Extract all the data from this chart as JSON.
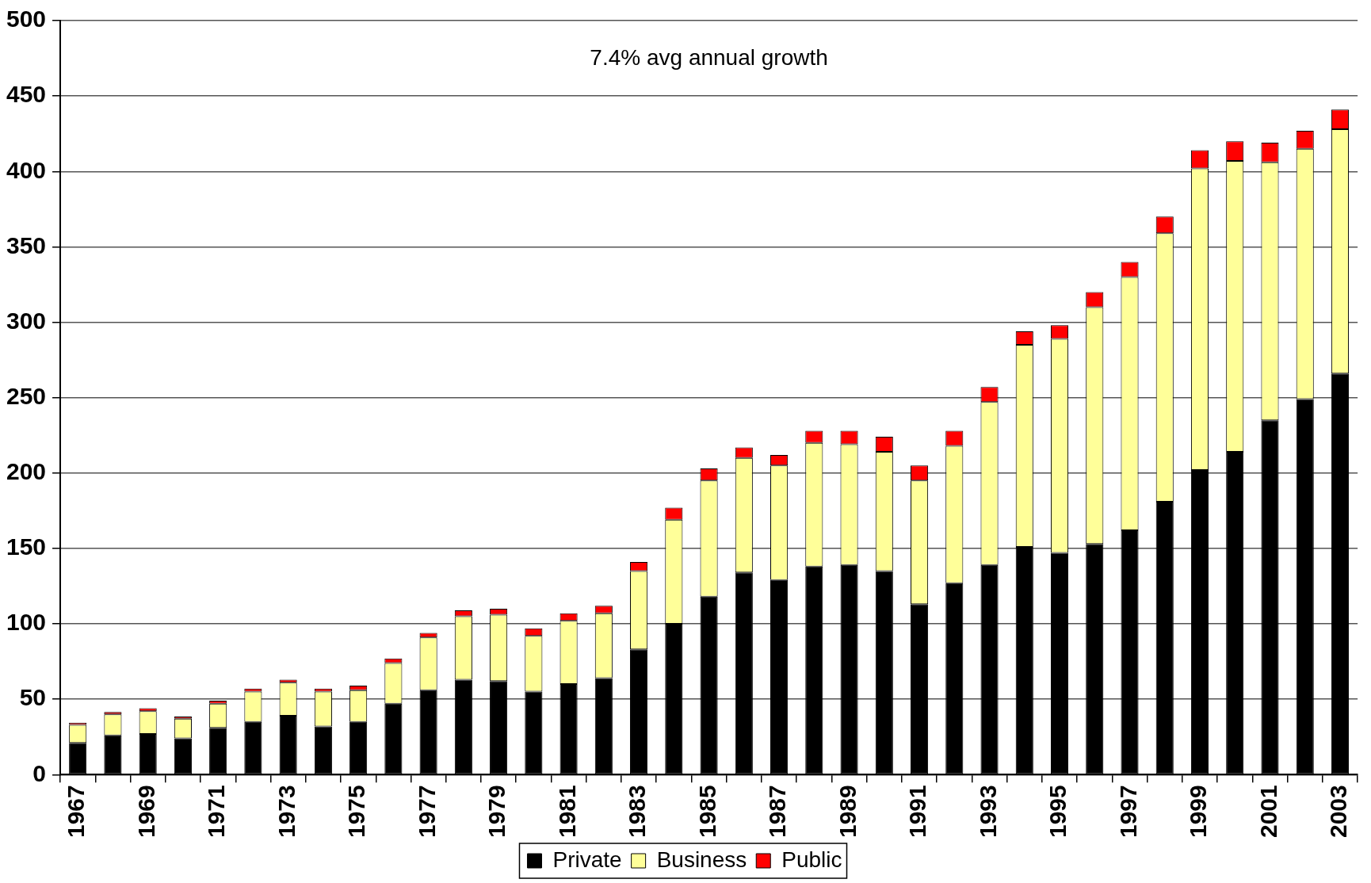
{
  "chart_data": {
    "type": "bar",
    "stacked": true,
    "annotations": [
      "7.4% avg annual growth"
    ],
    "categories": [
      "1967",
      null,
      "1969",
      null,
      "1971",
      null,
      "1973",
      null,
      "1975",
      null,
      "1977",
      null,
      "1979",
      null,
      "1981",
      null,
      "1983",
      null,
      "1985",
      null,
      "1987",
      null,
      "1989",
      null,
      "1991",
      null,
      "1993",
      null,
      "1995",
      null,
      "1997",
      null,
      "1999",
      null,
      "2001",
      null,
      "2003"
    ],
    "series": [
      {
        "name": "Private",
        "color": "#000000",
        "values": [
          21,
          26,
          27,
          24,
          31,
          35,
          39,
          32,
          35,
          47,
          56,
          63,
          62,
          55,
          60,
          64,
          83,
          100,
          118,
          134,
          129,
          138,
          139,
          135,
          113,
          127,
          139,
          151,
          147,
          153,
          162,
          181,
          202,
          214,
          235,
          249,
          266
        ]
      },
      {
        "name": "Business",
        "color": "#ffff99",
        "values": [
          12,
          14,
          15,
          13,
          16,
          20,
          22,
          23,
          21,
          27,
          35,
          42,
          44,
          37,
          42,
          43,
          52,
          69,
          77,
          76,
          76,
          82,
          80,
          79,
          82,
          91,
          108,
          134,
          142,
          157,
          168,
          178,
          200,
          193,
          171,
          166,
          162
        ]
      },
      {
        "name": "Public",
        "color": "#ff0000",
        "values": [
          1.5,
          1.5,
          2,
          1.5,
          2,
          2,
          2,
          2,
          3,
          3,
          3,
          4,
          4,
          5,
          5,
          5,
          6,
          8,
          8,
          7,
          7,
          8,
          9,
          10,
          10,
          10,
          10,
          9,
          9,
          10,
          10,
          11,
          12,
          13,
          13,
          12,
          13
        ]
      }
    ],
    "ylim": [
      0,
      500
    ],
    "yticks": [
      0,
      50,
      100,
      150,
      200,
      250,
      300,
      350,
      400,
      450,
      500
    ],
    "grid": "y",
    "legend": "bottom"
  }
}
